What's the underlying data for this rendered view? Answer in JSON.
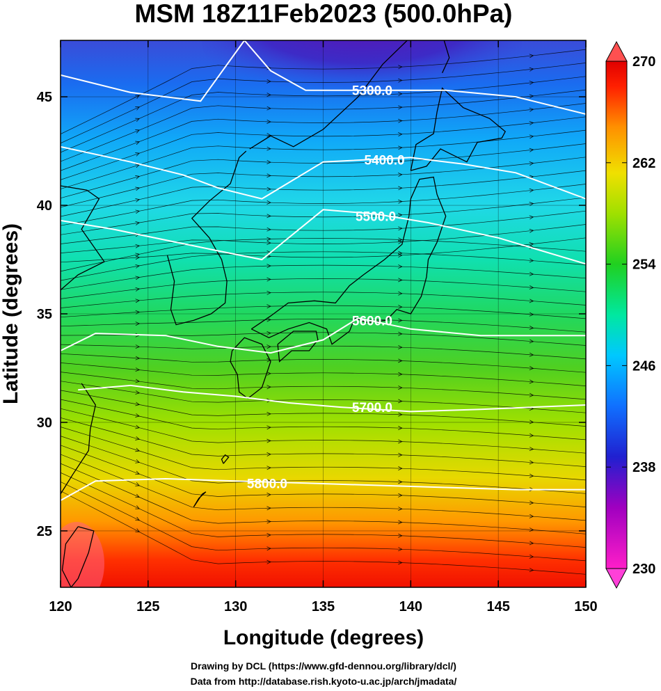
{
  "title": "MSM 18Z11Feb2023 (500.0hPa)",
  "xlabel": "Longitude (degrees)",
  "ylabel": "Latitude  (degrees)",
  "credits": [
    "Drawing by DCL (https://www.gfd-dennou.org/library/dcl/)",
    "Data from http://database.rish.kyoto-u.ac.jp/arch/jmadata/"
  ],
  "chart_data": {
    "type": "heatmap",
    "xlim": [
      120,
      150
    ],
    "ylim": [
      22.4,
      47.6
    ],
    "x_ticks": [
      "120",
      "125",
      "130",
      "135",
      "140",
      "145",
      "150"
    ],
    "y_ticks": [
      "25",
      "30",
      "35",
      "40",
      "45"
    ],
    "x_tick_values": [
      120,
      125,
      130,
      135,
      140,
      145,
      150
    ],
    "y_tick_values": [
      25,
      30,
      35,
      40,
      45
    ],
    "grid": true,
    "colorbar": {
      "min": 230,
      "max": 270,
      "labels": [
        "270",
        "262",
        "254",
        "246",
        "238",
        "230"
      ],
      "label_values": [
        270,
        262,
        254,
        246,
        238,
        230
      ],
      "colors": [
        "#ff1ec8",
        "#a000c0",
        "#2020d0",
        "#1070ff",
        "#00c8ff",
        "#00e8a0",
        "#20d020",
        "#a0e000",
        "#f0e000",
        "#ff9000",
        "#ff2000",
        "#e00000"
      ]
    },
    "contours": [
      {
        "label": "5300.0",
        "points": [
          [
            120,
            46
          ],
          [
            124,
            45.2
          ],
          [
            128,
            44.8
          ],
          [
            130.5,
            47.6
          ]
        ],
        "segment": [
          [
            130.5,
            47.6
          ],
          [
            132,
            46.2
          ],
          [
            134,
            45.3
          ],
          [
            137,
            45.3
          ],
          [
            142,
            45.3
          ],
          [
            146,
            45
          ],
          [
            150,
            44.2
          ]
        ],
        "label_at": [
          137.8,
          45.3
        ]
      },
      {
        "label": "5400.0",
        "points": [
          [
            120,
            42.7
          ],
          [
            124,
            42
          ],
          [
            127,
            41.4
          ],
          [
            129,
            40.8
          ],
          [
            131.5,
            40.3
          ],
          [
            135,
            42
          ],
          [
            140,
            42.2
          ],
          [
            143,
            41.9
          ],
          [
            146,
            41.5
          ],
          [
            150,
            40.3
          ]
        ],
        "label_at": [
          138.5,
          42.1
        ]
      },
      {
        "label": "5500.0",
        "points": [
          [
            120,
            39.3
          ],
          [
            123,
            38.9
          ],
          [
            126,
            38.4
          ],
          [
            129,
            37.9
          ],
          [
            131.5,
            37.5
          ],
          [
            135,
            39.8
          ],
          [
            138,
            39.6
          ],
          [
            141,
            39.2
          ],
          [
            145,
            38.5
          ],
          [
            150,
            37.3
          ]
        ],
        "label_at": [
          138,
          39.5
        ]
      },
      {
        "label": "5600.0",
        "points": [
          [
            120,
            33.3
          ],
          [
            122,
            34.1
          ],
          [
            126,
            34
          ],
          [
            129,
            33.5
          ],
          [
            132,
            33.2
          ],
          [
            135,
            33.8
          ],
          [
            137,
            34.8
          ],
          [
            140,
            34.3
          ],
          [
            144,
            34
          ],
          [
            150,
            34
          ]
        ],
        "label_at": [
          137.8,
          34.7
        ]
      },
      {
        "label": "5700.0",
        "points": [
          [
            121,
            31.5
          ],
          [
            124,
            31.7
          ],
          [
            127,
            31.4
          ],
          [
            130,
            31.2
          ],
          [
            133,
            30.9
          ],
          [
            136,
            30.7
          ],
          [
            140,
            30.5
          ],
          [
            144,
            30.6
          ],
          [
            150,
            30.8
          ]
        ],
        "label_at": [
          137.8,
          30.7
        ]
      },
      {
        "label": "5800.0",
        "points": [
          [
            120,
            26.4
          ],
          [
            122,
            27.3
          ],
          [
            126,
            27.4
          ],
          [
            130,
            27.3
          ],
          [
            134,
            27.2
          ],
          [
            138,
            27.1
          ],
          [
            142,
            27
          ],
          [
            146,
            26.9
          ],
          [
            150,
            26.9
          ]
        ],
        "label_at": [
          131.8,
          27.2
        ]
      }
    ]
  }
}
